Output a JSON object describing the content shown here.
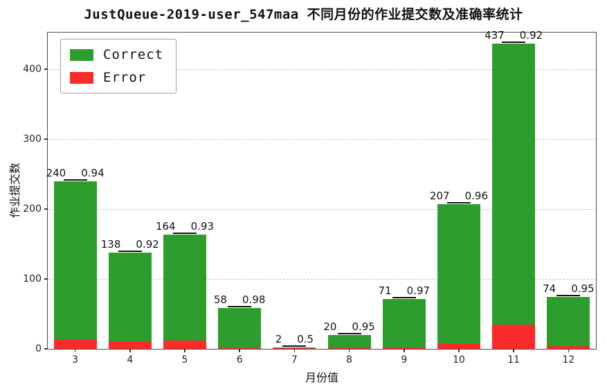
{
  "title": "JustQueue-2019-user_547maa 不同月份的作业提交数及准确率统计",
  "chart_data": {
    "type": "bar",
    "stacked": true,
    "title": "JustQueue-2019-user_547maa 不同月份的作业提交数及准确率统计",
    "xlabel": "月份值",
    "ylabel": "作业提交数",
    "categories": [
      "3",
      "4",
      "5",
      "6",
      "7",
      "8",
      "9",
      "10",
      "11",
      "12"
    ],
    "totals": [
      240,
      138,
      164,
      58,
      2,
      20,
      71,
      207,
      437,
      74
    ],
    "accuracy": [
      "0.94",
      "0.92",
      "0.93",
      "0.98",
      "0.5",
      "0.95",
      "0.97",
      "0.96",
      "0.92",
      "0.95"
    ],
    "series": [
      {
        "name": "Error",
        "color": "#fb2b2b",
        "values": [
          14,
          11,
          12,
          1,
          1,
          1,
          2,
          8,
          35,
          4
        ]
      },
      {
        "name": "Correct",
        "color": "#2d9e2d",
        "values": [
          226,
          127,
          152,
          57,
          1,
          19,
          69,
          199,
          402,
          70
        ]
      }
    ],
    "legend": [
      {
        "label": "Correct",
        "color": "#2d9e2d"
      },
      {
        "label": "Error",
        "color": "#fb2b2b"
      }
    ],
    "legend_position": "upper-left",
    "ylim": [
      0,
      453
    ],
    "yticks": [
      0,
      100,
      200,
      300,
      400
    ],
    "grid": "horizontal-dashed"
  }
}
